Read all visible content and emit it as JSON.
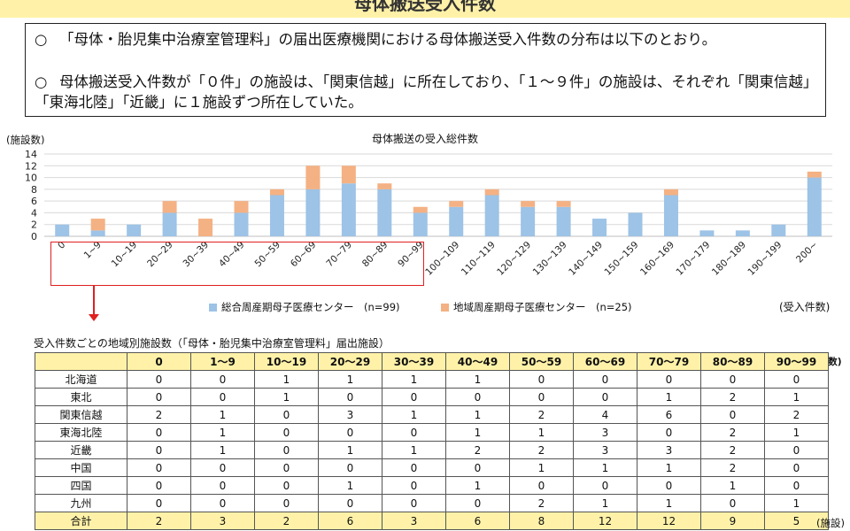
{
  "header": {
    "title": "母体搬送受入件数"
  },
  "notes": [
    {
      "mark": "○",
      "text": "「母体・胎児集中治療室管理料」の届出医療機関における母体搬送受入件数の分布は以下のとおり。"
    },
    {
      "mark": "○",
      "text": "母体搬送受入件数が「０件」の施設は、「関東信越」に所在しており、「１～９件」の施設は、それぞれ「関東信越」「東海北陸」「近畿」に１施設ずつ所在していた。"
    }
  ],
  "chart_data": {
    "type": "bar",
    "stacked": true,
    "title": "母体搬送の受入総件数",
    "ylabel": "(施設数)",
    "xlabel": "(受入件数)",
    "ylim": [
      0,
      14
    ],
    "yticks": [
      0,
      2,
      4,
      6,
      8,
      10,
      12,
      14
    ],
    "grid": true,
    "legend_position": "bottom",
    "categories": [
      "0",
      "1~9",
      "10~19",
      "20~29",
      "30~39",
      "40~49",
      "50~59",
      "60~69",
      "70~79",
      "80~89",
      "90~99",
      "100~109",
      "110~119",
      "120~129",
      "130~139",
      "140~149",
      "150~159",
      "160~169",
      "170~179",
      "180~189",
      "190~199",
      "200~"
    ],
    "series": [
      {
        "name": "総合周産期母子医療センター　(n=99)",
        "color": "#9dc3e6",
        "values": [
          2,
          1,
          2,
          4,
          0,
          4,
          7,
          8,
          9,
          8,
          4,
          5,
          7,
          5,
          5,
          3,
          4,
          7,
          1,
          1,
          2,
          10
        ]
      },
      {
        "name": "地域周産期母子医療センター　(n=25)",
        "color": "#f4b183",
        "values": [
          0,
          2,
          0,
          2,
          3,
          2,
          1,
          4,
          3,
          1,
          1,
          1,
          1,
          1,
          1,
          0,
          0,
          1,
          0,
          0,
          0,
          1
        ]
      }
    ]
  },
  "table": {
    "caption": "受入件数ごとの地域別施設数（「母体・胎児集中治療室管理料」届出施設）",
    "unit_header": "(件数)",
    "unit_footer": "(施設)",
    "columns": [
      "",
      "0",
      "1～9",
      "10～19",
      "20～29",
      "30～39",
      "40～49",
      "50～59",
      "60～69",
      "70～79",
      "80～89",
      "90～99"
    ],
    "rows": [
      {
        "region": "北海道",
        "values": [
          "0",
          "0",
          "1",
          "1",
          "1",
          "1",
          "0",
          "0",
          "0",
          "0",
          "0"
        ]
      },
      {
        "region": "東北",
        "values": [
          "0",
          "0",
          "1",
          "0",
          "0",
          "0",
          "0",
          "0",
          "1",
          "2",
          "1"
        ]
      },
      {
        "region": "関東信越",
        "values": [
          "2",
          "1",
          "0",
          "3",
          "1",
          "1",
          "2",
          "4",
          "6",
          "0",
          "2"
        ]
      },
      {
        "region": "東海北陸",
        "values": [
          "0",
          "1",
          "0",
          "0",
          "0",
          "1",
          "1",
          "3",
          "0",
          "2",
          "1"
        ]
      },
      {
        "region": "近畿",
        "values": [
          "0",
          "1",
          "0",
          "1",
          "1",
          "2",
          "2",
          "3",
          "3",
          "2",
          "0"
        ]
      },
      {
        "region": "中国",
        "values": [
          "0",
          "0",
          "0",
          "0",
          "0",
          "0",
          "1",
          "1",
          "1",
          "2",
          "0"
        ]
      },
      {
        "region": "四国",
        "values": [
          "0",
          "0",
          "0",
          "1",
          "0",
          "1",
          "0",
          "0",
          "0",
          "1",
          "0"
        ]
      },
      {
        "region": "九州",
        "values": [
          "0",
          "0",
          "0",
          "0",
          "0",
          "0",
          "2",
          "1",
          "1",
          "0",
          "1"
        ]
      }
    ],
    "total": {
      "region": "合計",
      "values": [
        "2",
        "3",
        "2",
        "6",
        "3",
        "6",
        "8",
        "12",
        "12",
        "9",
        "5"
      ]
    }
  }
}
